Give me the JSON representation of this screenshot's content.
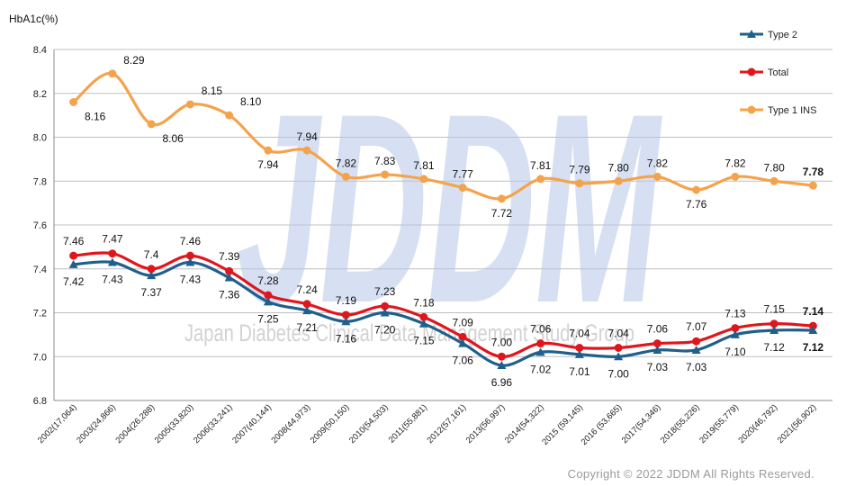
{
  "ylabel_text": "HbA1c(%)",
  "watermark": {
    "main": "JDDM",
    "sub": "Japan Diabetes Clinical Data Management Study Group"
  },
  "copyright": "Copyright © 2022 JDDM All Rights Reserved.",
  "colors": {
    "type2": "#1f5f8b",
    "total": "#e0161d",
    "type1": "#f4a34c",
    "grid": "#bfbfbf"
  },
  "chart_data": {
    "type": "line",
    "ylabel": "HbA1c(%)",
    "ylim": [
      6.8,
      8.4
    ],
    "yticks": [
      "6.8",
      "7.0",
      "7.2",
      "7.4",
      "7.6",
      "7.8",
      "8.0",
      "8.2",
      "8.4"
    ],
    "grid": true,
    "legend_position": "top-right",
    "categories": [
      "2002(17,064)",
      "2003(24,866)",
      "2004(26,288)",
      "2005(33,820)",
      "2006(33,241)",
      "2007(40,144)",
      "2008(44,973)",
      "2009(50,150)",
      "2010(54,503)",
      "2011(55,881)",
      "2012(57,161)",
      "2013(56,997)",
      "2014(54,322)",
      "2015 (59,145)",
      "2016 (53,665)",
      "2017(54,346)",
      "2018(55,226)",
      "2019(55,779)",
      "2020(46,792)",
      "2021(56,902)"
    ],
    "series": [
      {
        "name": "Type 2",
        "color": "#1f5f8b",
        "marker": "triangle",
        "values": [
          7.42,
          7.43,
          7.37,
          7.43,
          7.36,
          7.25,
          7.21,
          7.16,
          7.2,
          7.15,
          7.06,
          6.96,
          7.02,
          7.01,
          7.0,
          7.03,
          7.03,
          7.1,
          7.12,
          7.12
        ],
        "labels": [
          "7.42",
          "7.43",
          "7.37",
          "7.43",
          "7.36",
          "7.25",
          "7.21",
          "7.16",
          "7.20",
          "7.15",
          "7.06",
          "6.96",
          "7.02",
          "7.01",
          "7.00",
          "7.03",
          "7.03",
          "7.10",
          "7.12",
          "7.12"
        ]
      },
      {
        "name": "Total",
        "color": "#e0161d",
        "marker": "circle",
        "values": [
          7.46,
          7.47,
          7.4,
          7.46,
          7.39,
          7.28,
          7.24,
          7.19,
          7.23,
          7.18,
          7.09,
          7.0,
          7.06,
          7.04,
          7.04,
          7.06,
          7.07,
          7.13,
          7.15,
          7.14
        ],
        "labels": [
          "7.46",
          "7.47",
          "7.4",
          "7.46",
          "7.39",
          "7.28",
          "7.24",
          "7.19",
          "7.23",
          "7.18",
          "7.09",
          "7.00",
          "7.06",
          "7.04",
          "7.04",
          "7.06",
          "7.07",
          "7.13",
          "7.15",
          "7.14"
        ]
      },
      {
        "name": "Type 1 INS",
        "color": "#f4a34c",
        "marker": "circle",
        "values": [
          8.16,
          8.29,
          8.06,
          8.15,
          8.1,
          7.94,
          7.94,
          7.82,
          7.83,
          7.81,
          7.77,
          7.72,
          7.81,
          7.79,
          7.8,
          7.82,
          7.76,
          7.82,
          7.8,
          7.78
        ],
        "labels": [
          "8.16",
          "8.29",
          "8.06",
          "8.15",
          "8.10",
          "7.94",
          "7.94",
          "7.82",
          "7.83",
          "7.81",
          "7.77",
          "7.72",
          "7.81",
          "7.79",
          "7.80",
          "7.82",
          "7.76",
          "7.82",
          "7.80",
          "7.78"
        ]
      }
    ]
  }
}
